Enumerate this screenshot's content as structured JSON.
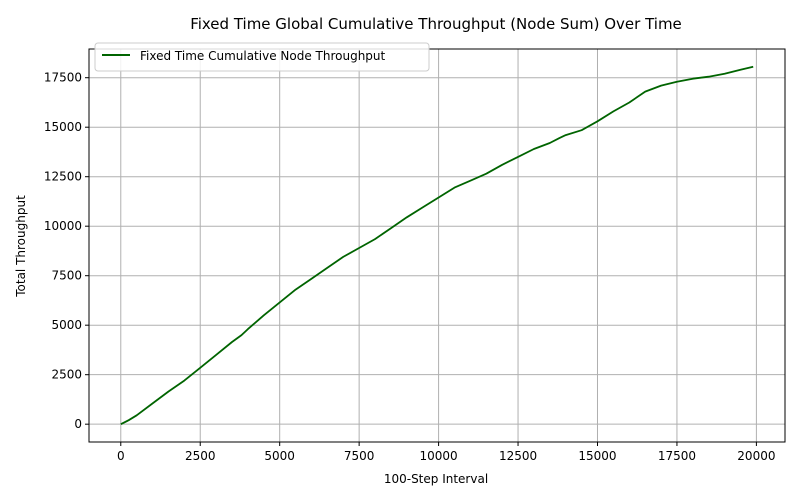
{
  "chart_data": {
    "type": "line",
    "title": "Fixed Time Global Cumulative Throughput (Node Sum) Over Time",
    "xlabel": "100-Step Interval",
    "ylabel": "Total Throughput",
    "xlim": [
      -1000,
      20900
    ],
    "ylim": [
      -900,
      18950
    ],
    "xticks": [
      0,
      2500,
      5000,
      7500,
      10000,
      12500,
      15000,
      17500,
      20000
    ],
    "yticks": [
      0,
      2500,
      5000,
      7500,
      10000,
      12500,
      15000,
      17500
    ],
    "grid": true,
    "legend_position": "top-left",
    "series": [
      {
        "name": "Fixed Time Cumulative Node Throughput",
        "color": "#006400",
        "x": [
          0,
          250,
          500,
          1000,
          1500,
          2000,
          2500,
          3000,
          3500,
          3800,
          4000,
          4500,
          5000,
          5500,
          6000,
          6500,
          7000,
          7500,
          8000,
          8500,
          9000,
          9500,
          10000,
          10500,
          11000,
          11500,
          12000,
          12500,
          13000,
          13500,
          13800,
          14000,
          14500,
          15000,
          15500,
          16000,
          16500,
          17000,
          17500,
          18000,
          18500,
          19000,
          19500,
          19900
        ],
        "y": [
          0,
          200,
          450,
          1050,
          1650,
          2200,
          2850,
          3500,
          4150,
          4500,
          4800,
          5500,
          6150,
          6800,
          7350,
          7900,
          8450,
          8900,
          9350,
          9900,
          10450,
          10950,
          11450,
          11950,
          12300,
          12650,
          13100,
          13500,
          13900,
          14200,
          14450,
          14600,
          14850,
          15300,
          15800,
          16250,
          16800,
          17100,
          17300,
          17450,
          17550,
          17700,
          17900,
          18050
        ]
      }
    ]
  }
}
